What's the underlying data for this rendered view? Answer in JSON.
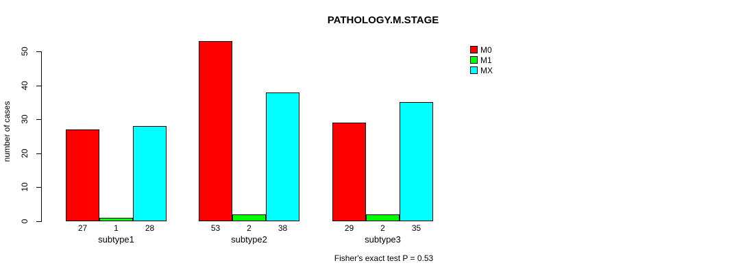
{
  "chart_data": {
    "type": "bar",
    "title": "PATHOLOGY.M.STAGE",
    "ylabel": "number of cases",
    "xlabel": "",
    "categories": [
      "subtype1",
      "subtype2",
      "subtype3"
    ],
    "series": [
      {
        "name": "M0",
        "color": "#FF0000",
        "values": [
          27,
          53,
          29
        ]
      },
      {
        "name": "M1",
        "color": "#00FF00",
        "values": [
          1,
          2,
          2
        ]
      },
      {
        "name": "MX",
        "color": "#00FFFF",
        "values": [
          28,
          38,
          35
        ]
      }
    ],
    "bar_value_labels": [
      [
        "27",
        "1",
        "28"
      ],
      [
        "53",
        "2",
        "38"
      ],
      [
        "29",
        "2",
        "35"
      ]
    ],
    "yticks": [
      0,
      10,
      20,
      30,
      40,
      50
    ],
    "ylim": [
      0,
      53
    ],
    "grid": false,
    "legend_position": "top-right-outside",
    "note": "Fisher's exact test P = 0.53"
  }
}
